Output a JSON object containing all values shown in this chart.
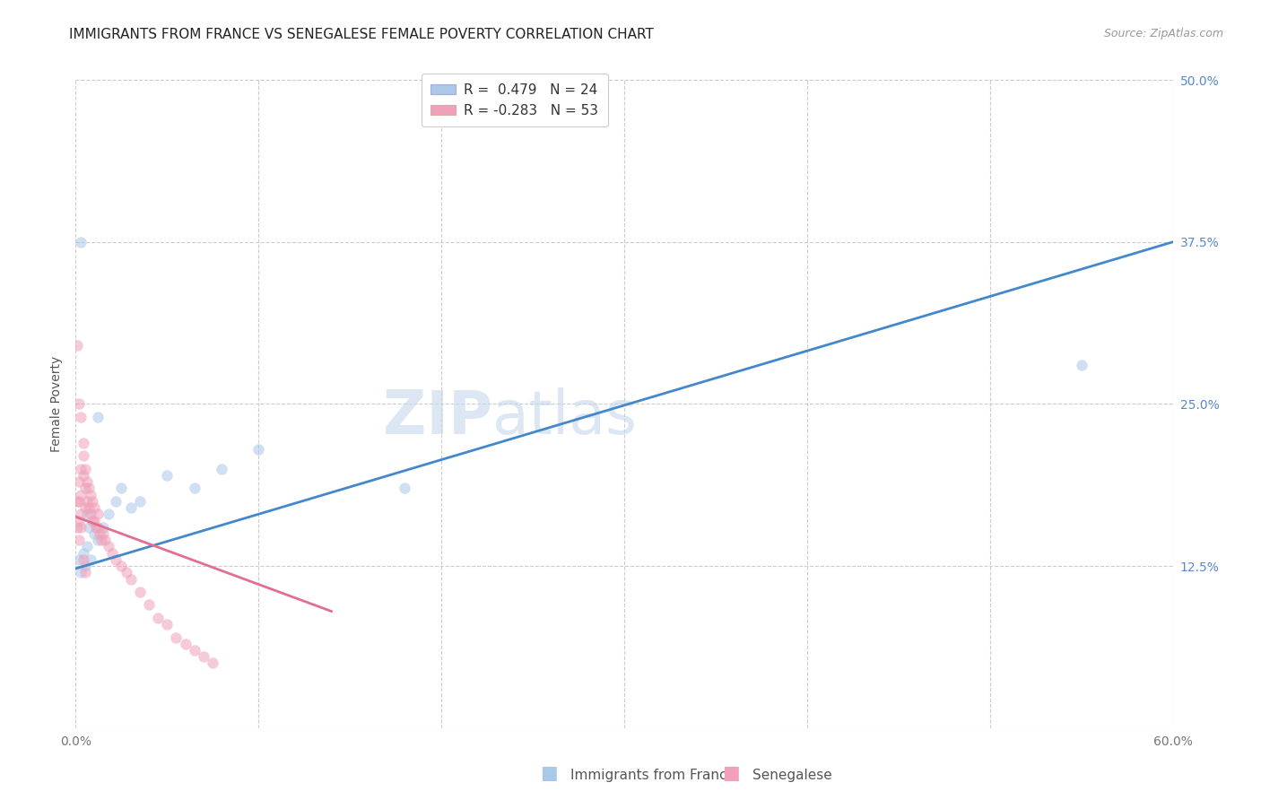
{
  "title": "IMMIGRANTS FROM FRANCE VS SENEGALESE FEMALE POVERTY CORRELATION CHART",
  "source": "Source: ZipAtlas.com",
  "ylabel": "Female Poverty",
  "xlim": [
    0.0,
    0.6
  ],
  "ylim": [
    0.0,
    0.5
  ],
  "xticks": [
    0.0,
    0.1,
    0.2,
    0.3,
    0.4,
    0.5,
    0.6
  ],
  "xticklabels": [
    "0.0%",
    "",
    "",
    "",
    "",
    "",
    "60.0%"
  ],
  "yticks": [
    0.0,
    0.125,
    0.25,
    0.375,
    0.5
  ],
  "yticklabels": [
    "",
    "12.5%",
    "25.0%",
    "37.5%",
    "50.0%"
  ],
  "grid_color": "#cccccc",
  "background_color": "#ffffff",
  "blue_color": "#aac8e8",
  "pink_color": "#f0a0b8",
  "blue_line_color": "#4488cc",
  "pink_line_color": "#e07090",
  "blue_scatter_x": [
    0.002,
    0.003,
    0.004,
    0.005,
    0.006,
    0.008,
    0.01,
    0.012,
    0.015,
    0.018,
    0.022,
    0.025,
    0.03,
    0.035,
    0.05,
    0.065,
    0.08,
    0.1,
    0.003,
    0.007,
    0.012,
    0.55,
    0.006,
    0.18
  ],
  "blue_scatter_y": [
    0.13,
    0.12,
    0.135,
    0.125,
    0.14,
    0.13,
    0.15,
    0.145,
    0.155,
    0.165,
    0.175,
    0.185,
    0.17,
    0.175,
    0.195,
    0.185,
    0.2,
    0.215,
    0.375,
    0.155,
    0.24,
    0.28,
    0.165,
    0.185
  ],
  "pink_scatter_x": [
    0.001,
    0.001,
    0.002,
    0.002,
    0.002,
    0.003,
    0.003,
    0.003,
    0.004,
    0.004,
    0.004,
    0.005,
    0.005,
    0.005,
    0.006,
    0.006,
    0.007,
    0.007,
    0.008,
    0.008,
    0.009,
    0.009,
    0.01,
    0.01,
    0.011,
    0.012,
    0.012,
    0.013,
    0.014,
    0.015,
    0.016,
    0.018,
    0.02,
    0.022,
    0.025,
    0.028,
    0.03,
    0.035,
    0.04,
    0.045,
    0.05,
    0.055,
    0.06,
    0.065,
    0.07,
    0.075,
    0.002,
    0.003,
    0.004,
    0.005,
    0.001,
    0.002,
    0.003
  ],
  "pink_scatter_y": [
    0.155,
    0.175,
    0.16,
    0.175,
    0.19,
    0.165,
    0.18,
    0.2,
    0.195,
    0.21,
    0.22,
    0.17,
    0.185,
    0.2,
    0.175,
    0.19,
    0.17,
    0.185,
    0.165,
    0.18,
    0.16,
    0.175,
    0.16,
    0.17,
    0.155,
    0.155,
    0.165,
    0.15,
    0.145,
    0.15,
    0.145,
    0.14,
    0.135,
    0.13,
    0.125,
    0.12,
    0.115,
    0.105,
    0.095,
    0.085,
    0.08,
    0.07,
    0.065,
    0.06,
    0.055,
    0.05,
    0.145,
    0.155,
    0.13,
    0.12,
    0.295,
    0.25,
    0.24
  ],
  "blue_trend_x": [
    0.0,
    0.6
  ],
  "blue_trend_y": [
    0.123,
    0.375
  ],
  "pink_trend_x": [
    0.0,
    0.14
  ],
  "pink_trend_y": [
    0.163,
    0.09
  ],
  "legend_label_blue": "R =  0.479   N = 24",
  "legend_label_pink": "R = -0.283   N = 53",
  "footer_label_blue": "Immigrants from France",
  "footer_label_pink": "Senegalese",
  "title_fontsize": 11,
  "source_fontsize": 9,
  "axis_label_fontsize": 10,
  "tick_fontsize": 10,
  "legend_fontsize": 11,
  "footer_fontsize": 11,
  "marker_size": 9,
  "marker_alpha": 0.55,
  "line_width": 2.0
}
